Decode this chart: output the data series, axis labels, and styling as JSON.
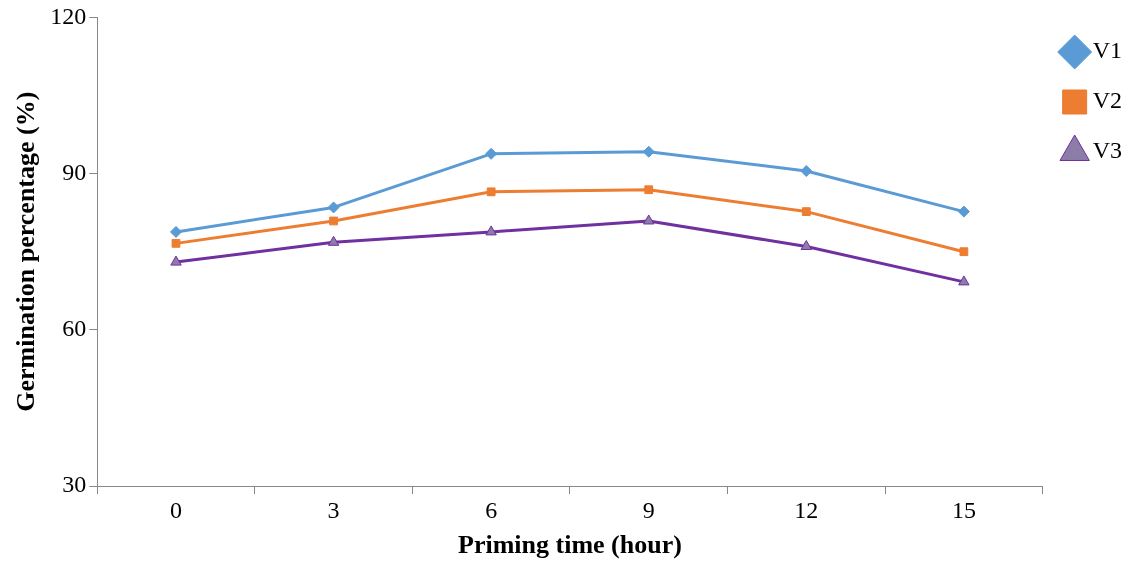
{
  "chart_data": {
    "type": "line",
    "xlabel": "Priming time (hour)",
    "ylabel": "Germination percentage (%)",
    "categories": [
      "0",
      "3",
      "6",
      "9",
      "12",
      "15"
    ],
    "ylim": [
      30,
      120
    ],
    "yticks": [
      30,
      60,
      90,
      120
    ],
    "grid": false,
    "legend": "top right",
    "series": [
      {
        "name": "V1",
        "color": "#5b9bd5",
        "marker": "diamond",
        "values": [
          78.8,
          83.5,
          93.8,
          94.2,
          90.5,
          82.7
        ]
      },
      {
        "name": "V2",
        "color": "#ed7d31",
        "marker": "square",
        "values": [
          76.6,
          80.9,
          86.5,
          86.9,
          82.7,
          75.0
        ]
      },
      {
        "name": "V3",
        "color": "#7030a0",
        "marker": "triangle",
        "values": [
          73.0,
          76.8,
          78.8,
          80.9,
          76.0,
          69.2
        ]
      }
    ]
  }
}
